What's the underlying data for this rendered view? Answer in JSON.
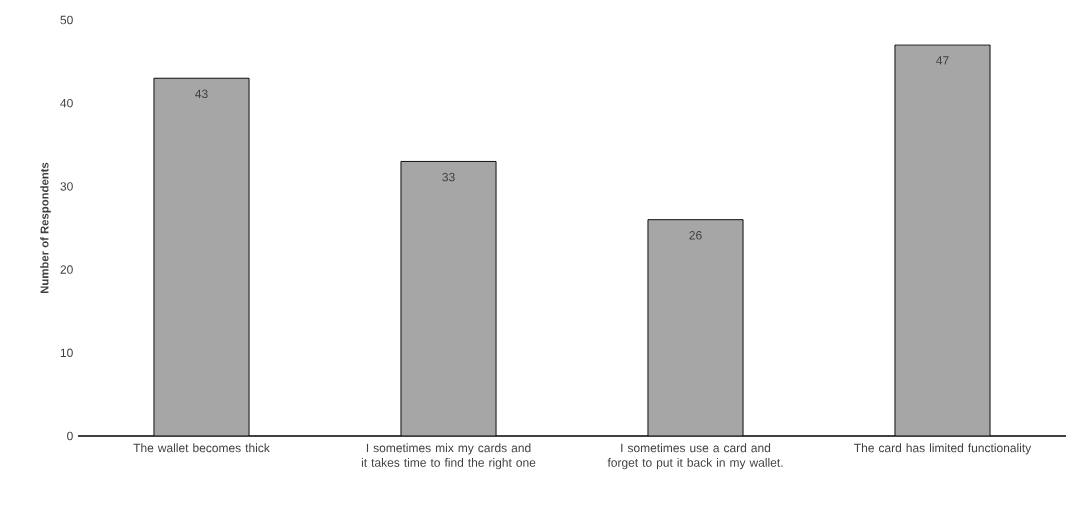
{
  "chart_data": {
    "type": "bar",
    "ylabel": "Number of Respondents",
    "categories": [
      "The wallet becomes thick",
      "I sometimes mix my cards and it takes time to find the right one",
      "I sometimes use a card and forget to put it back in my wallet.",
      "The card has limited functionality"
    ],
    "values": [
      43,
      33,
      26,
      47
    ],
    "color": "#a6a6a6",
    "ylim": [
      0,
      50
    ],
    "yticks": [
      0,
      10,
      20,
      30,
      40,
      50
    ],
    "grid": false,
    "data_labels": true
  }
}
